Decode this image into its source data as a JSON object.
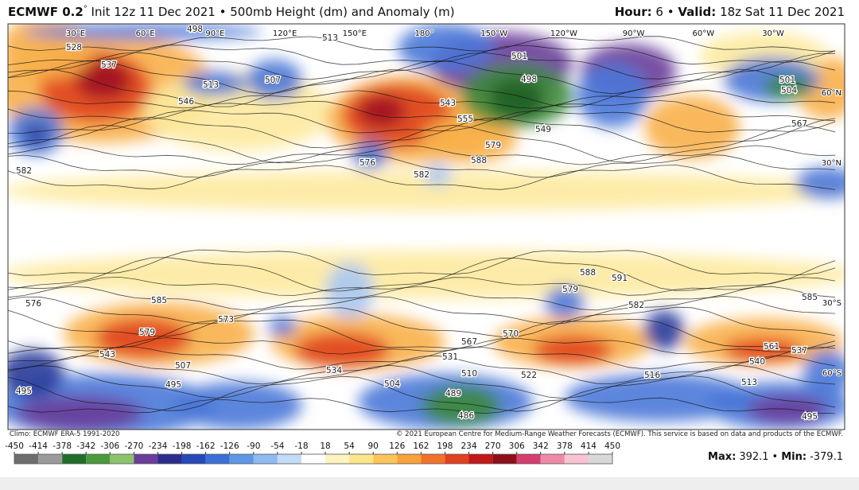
{
  "header": {
    "title_bold": "ECMWF 0.2",
    "title_degree": "°",
    "title_rest": " Init 12z 11 Dec 2021 • 500mb Height (dm) and Anomaly (m)",
    "hour_label": "Hour:",
    "hour_value": "6 •",
    "valid_label": "Valid:",
    "valid_value": "18z Sat 11 Dec 2021"
  },
  "map": {
    "longitude_labels": [
      "30°E",
      "60°E",
      "90°E",
      "120°E",
      "150°E",
      "180°",
      "150°W",
      "120°W",
      "90°W",
      "60°W",
      "30°W"
    ],
    "latitude_labels": [
      "60°N",
      "30°N",
      "30°S",
      "60°S"
    ],
    "contour_labels": [
      528,
      537,
      546,
      513,
      507,
      498,
      513,
      501,
      498,
      549,
      555,
      543,
      579,
      588,
      582,
      576,
      582,
      576,
      585,
      579,
      543,
      507,
      495,
      495,
      573,
      567,
      570,
      579,
      588,
      591,
      582,
      585,
      561,
      537,
      531,
      510,
      489,
      486,
      504,
      534,
      522,
      516,
      495,
      501,
      504,
      567,
      513,
      540
    ]
  },
  "footer": {
    "climo": "Climo: ECMWF ERA-5 1991-2020",
    "copyright": "© 2021 European Centre for Medium-Range Weather Forecasts (ECMWF). This service is based on data and products of the ECMWF."
  },
  "colorbar": {
    "ticks": [
      -450,
      -414,
      -378,
      -342,
      -306,
      -270,
      -234,
      -198,
      -162,
      -126,
      -90,
      -54,
      -18,
      18,
      54,
      90,
      126,
      162,
      198,
      234,
      270,
      306,
      342,
      378,
      414,
      450
    ],
    "colors": [
      "#6e6e6e",
      "#9a9a9a",
      "#1f6e2a",
      "#4b9a3c",
      "#8cc26a",
      "#6a3d9a",
      "#2c2c8c",
      "#2748b8",
      "#3a6fd8",
      "#5e97e6",
      "#8fbaf0",
      "#c3dbf7",
      "#ffffff",
      "#fdf5c0",
      "#fde58a",
      "#fcc45a",
      "#f9a13a",
      "#f2722b",
      "#e0401f",
      "#c21818",
      "#8c0f1a",
      "#d43d6e",
      "#ee8aa8",
      "#f7c3d3",
      "#d8d8d8"
    ]
  },
  "stats": {
    "max_label": "Max:",
    "max": 392.1,
    "separator": "•",
    "min_label": "Min:",
    "min": -379.1
  }
}
